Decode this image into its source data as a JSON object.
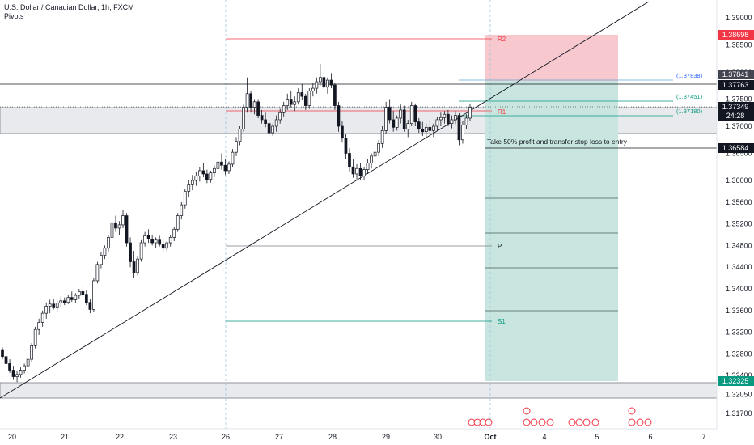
{
  "header": {
    "title": "U.S. Dollar / Canadian Dollar, 1h, FXCM",
    "indicator": "Pivots"
  },
  "chart_data": {
    "type": "candlestick",
    "symbol": "USDCAD",
    "timeframe": "1h",
    "y_ticks": [
      "1.39000",
      "1.38500",
      "1.38000",
      "1.37500",
      "1.37000",
      "1.36500",
      "1.36000",
      "1.35600",
      "1.35200",
      "1.34800",
      "1.34400",
      "1.34000",
      "1.33600",
      "1.33200",
      "1.32800",
      "1.32400",
      "1.32050",
      "1.31700"
    ],
    "x_ticks": [
      "20",
      "21",
      "22",
      "23",
      "26",
      "27",
      "28",
      "29",
      "30",
      "Oct",
      "4",
      "5",
      "6",
      "7"
    ],
    "price_badges": [
      {
        "value": "1.38698",
        "bg": "#f23645",
        "fg": "#ffffff"
      },
      {
        "value": "1.37841",
        "bg": "#434651",
        "fg": "#ffffff"
      },
      {
        "value": "1.37763",
        "bg": "#131722",
        "fg": "#ffffff"
      },
      {
        "value": "1.37349",
        "bg": "#131722",
        "fg": "#ffffff"
      },
      {
        "value": "24:28",
        "bg": "#131722",
        "fg": "#ffffff"
      },
      {
        "value": "1.36584",
        "bg": "#131722",
        "fg": "#ffffff"
      },
      {
        "value": "1.32325",
        "bg": "#089981",
        "fg": "#ffffff"
      }
    ],
    "pivot_labels": {
      "r2": "R2",
      "r1": "R1",
      "p": "P",
      "s1": "S1"
    },
    "fib_labels": [
      "(1.37838)",
      "(1.37451)",
      "(1.37180)"
    ],
    "annotation": "Take 50% profit and transfer stop loss to entry",
    "candles": [
      [
        1.3288,
        1.3292,
        1.327,
        1.3275
      ],
      [
        1.3275,
        1.3282,
        1.3258,
        1.3262
      ],
      [
        1.3262,
        1.327,
        1.3245,
        1.325
      ],
      [
        1.325,
        1.3258,
        1.3232,
        1.3238
      ],
      [
        1.3238,
        1.3248,
        1.3228,
        1.3242
      ],
      [
        1.3242,
        1.3255,
        1.3236,
        1.325
      ],
      [
        1.325,
        1.3262,
        1.3244,
        1.3258
      ],
      [
        1.3258,
        1.3275,
        1.3252,
        1.327
      ],
      [
        1.327,
        1.33,
        1.3265,
        1.3295
      ],
      [
        1.3295,
        1.333,
        1.329,
        1.3325
      ],
      [
        1.3325,
        1.3345,
        1.3315,
        1.3338
      ],
      [
        1.3338,
        1.336,
        1.333,
        1.3355
      ],
      [
        1.3355,
        1.3375,
        1.3345,
        1.3368
      ],
      [
        1.3368,
        1.338,
        1.3355,
        1.3372
      ],
      [
        1.3372,
        1.3382,
        1.3362,
        1.3365
      ],
      [
        1.3365,
        1.3378,
        1.3358,
        1.3374
      ],
      [
        1.3374,
        1.3386,
        1.3366,
        1.3378
      ],
      [
        1.3378,
        1.3384,
        1.337,
        1.3375
      ],
      [
        1.3375,
        1.3388,
        1.3372,
        1.3384
      ],
      [
        1.3384,
        1.3395,
        1.3376,
        1.338
      ],
      [
        1.338,
        1.3392,
        1.3374,
        1.3388
      ],
      [
        1.3388,
        1.34,
        1.3382,
        1.3395
      ],
      [
        1.3395,
        1.3404,
        1.3385,
        1.339
      ],
      [
        1.339,
        1.3398,
        1.337,
        1.3375
      ],
      [
        1.3375,
        1.3382,
        1.3355,
        1.3362
      ],
      [
        1.3362,
        1.342,
        1.3358,
        1.3415
      ],
      [
        1.3415,
        1.345,
        1.341,
        1.3445
      ],
      [
        1.3445,
        1.3468,
        1.3438,
        1.3462
      ],
      [
        1.3462,
        1.348,
        1.3455,
        1.3475
      ],
      [
        1.3475,
        1.35,
        1.3468,
        1.3495
      ],
      [
        1.3495,
        1.353,
        1.3488,
        1.3522
      ],
      [
        1.3522,
        1.3535,
        1.3505,
        1.3512
      ],
      [
        1.3512,
        1.3525,
        1.35,
        1.3518
      ],
      [
        1.3518,
        1.3545,
        1.3512,
        1.3535
      ],
      [
        1.3535,
        1.354,
        1.3478,
        1.3485
      ],
      [
        1.3485,
        1.3495,
        1.344,
        1.345
      ],
      [
        1.345,
        1.347,
        1.342,
        1.343
      ],
      [
        1.343,
        1.346,
        1.3425,
        1.3455
      ],
      [
        1.3455,
        1.349,
        1.345,
        1.3485
      ],
      [
        1.3485,
        1.3505,
        1.3478,
        1.3498
      ],
      [
        1.3498,
        1.351,
        1.3485,
        1.3492
      ],
      [
        1.3492,
        1.35,
        1.348,
        1.3485
      ],
      [
        1.3485,
        1.3495,
        1.3476,
        1.349
      ],
      [
        1.349,
        1.3498,
        1.3478,
        1.3482
      ],
      [
        1.3482,
        1.349,
        1.3468,
        1.3475
      ],
      [
        1.3475,
        1.3488,
        1.347,
        1.3485
      ],
      [
        1.3485,
        1.35,
        1.3478,
        1.3495
      ],
      [
        1.3495,
        1.3515,
        1.3488,
        1.351
      ],
      [
        1.351,
        1.354,
        1.3505,
        1.3535
      ],
      [
        1.3535,
        1.356,
        1.3528,
        1.3555
      ],
      [
        1.3555,
        1.3585,
        1.3548,
        1.358
      ],
      [
        1.358,
        1.36,
        1.357,
        1.3592
      ],
      [
        1.3592,
        1.361,
        1.3582,
        1.36
      ],
      [
        1.36,
        1.3615,
        1.359,
        1.3608
      ],
      [
        1.3608,
        1.3625,
        1.3598,
        1.3618
      ],
      [
        1.3618,
        1.3632,
        1.3606,
        1.3612
      ],
      [
        1.3612,
        1.362,
        1.3595,
        1.3602
      ],
      [
        1.3602,
        1.3618,
        1.3596,
        1.3614
      ],
      [
        1.3614,
        1.3628,
        1.3606,
        1.3622
      ],
      [
        1.3622,
        1.364,
        1.3612,
        1.3634
      ],
      [
        1.3634,
        1.365,
        1.362,
        1.3628
      ],
      [
        1.3628,
        1.364,
        1.361,
        1.3618
      ],
      [
        1.3618,
        1.3635,
        1.3612,
        1.363
      ],
      [
        1.363,
        1.3658,
        1.3625,
        1.3652
      ],
      [
        1.3652,
        1.368,
        1.3645,
        1.3672
      ],
      [
        1.3672,
        1.37,
        1.3665,
        1.3695
      ],
      [
        1.3695,
        1.374,
        1.369,
        1.3735
      ],
      [
        1.3735,
        1.379,
        1.3725,
        1.376
      ],
      [
        1.376,
        1.3765,
        1.3725,
        1.3735
      ],
      [
        1.3735,
        1.375,
        1.3722,
        1.3745
      ],
      [
        1.3745,
        1.375,
        1.3715,
        1.372
      ],
      [
        1.372,
        1.373,
        1.3705,
        1.3712
      ],
      [
        1.3712,
        1.3725,
        1.3698,
        1.3705
      ],
      [
        1.3705,
        1.3712,
        1.368,
        1.3688
      ],
      [
        1.3688,
        1.3705,
        1.3682,
        1.37
      ],
      [
        1.37,
        1.372,
        1.369,
        1.3712
      ],
      [
        1.3712,
        1.3732,
        1.3705,
        1.3725
      ],
      [
        1.3725,
        1.3745,
        1.3718,
        1.3738
      ],
      [
        1.3738,
        1.376,
        1.373,
        1.375
      ],
      [
        1.375,
        1.3765,
        1.3735,
        1.374
      ],
      [
        1.374,
        1.3755,
        1.3728,
        1.3745
      ],
      [
        1.3745,
        1.377,
        1.374,
        1.3762
      ],
      [
        1.3762,
        1.3778,
        1.3748,
        1.3755
      ],
      [
        1.3755,
        1.376,
        1.373,
        1.3738
      ],
      [
        1.3738,
        1.377,
        1.3732,
        1.3765
      ],
      [
        1.3765,
        1.378,
        1.3755,
        1.377
      ],
      [
        1.377,
        1.379,
        1.376,
        1.3782
      ],
      [
        1.3782,
        1.3815,
        1.3775,
        1.379
      ],
      [
        1.379,
        1.38,
        1.3765,
        1.3772
      ],
      [
        1.3772,
        1.379,
        1.376,
        1.3785
      ],
      [
        1.3785,
        1.3798,
        1.377,
        1.3776
      ],
      [
        1.3776,
        1.378,
        1.373,
        1.3738
      ],
      [
        1.3738,
        1.3745,
        1.369,
        1.37
      ],
      [
        1.37,
        1.371,
        1.367,
        1.3678
      ],
      [
        1.3678,
        1.3685,
        1.364,
        1.365
      ],
      [
        1.365,
        1.366,
        1.3615,
        1.3625
      ],
      [
        1.3625,
        1.364,
        1.3605,
        1.3612
      ],
      [
        1.3612,
        1.363,
        1.3602,
        1.3622
      ],
      [
        1.3622,
        1.3632,
        1.36,
        1.3608
      ],
      [
        1.3608,
        1.3625,
        1.36,
        1.362
      ],
      [
        1.362,
        1.364,
        1.3612,
        1.3632
      ],
      [
        1.3632,
        1.365,
        1.3622,
        1.3645
      ],
      [
        1.3645,
        1.366,
        1.3635,
        1.3652
      ],
      [
        1.3652,
        1.3675,
        1.3645,
        1.3668
      ],
      [
        1.3668,
        1.37,
        1.366,
        1.3692
      ],
      [
        1.3692,
        1.3745,
        1.3685,
        1.3735
      ],
      [
        1.3735,
        1.375,
        1.3705,
        1.3712
      ],
      [
        1.3712,
        1.3728,
        1.369,
        1.3698
      ],
      [
        1.3698,
        1.372,
        1.3692,
        1.3715
      ],
      [
        1.3715,
        1.374,
        1.3705,
        1.373
      ],
      [
        1.373,
        1.3738,
        1.369,
        1.3695
      ],
      [
        1.3695,
        1.3712,
        1.368,
        1.3705
      ],
      [
        1.3705,
        1.3745,
        1.37,
        1.3738
      ],
      [
        1.3738,
        1.3742,
        1.37,
        1.3708
      ],
      [
        1.3708,
        1.3715,
        1.3688,
        1.3695
      ],
      [
        1.3695,
        1.3708,
        1.3682,
        1.369
      ],
      [
        1.369,
        1.3705,
        1.3678,
        1.3698
      ],
      [
        1.3698,
        1.3712,
        1.3685,
        1.3692
      ],
      [
        1.3692,
        1.3705,
        1.368,
        1.37
      ],
      [
        1.37,
        1.3718,
        1.3692,
        1.3712
      ],
      [
        1.3712,
        1.3725,
        1.37,
        1.3716
      ],
      [
        1.3716,
        1.3728,
        1.3705,
        1.3722
      ],
      [
        1.3722,
        1.373,
        1.37,
        1.3705
      ],
      [
        1.3705,
        1.372,
        1.3696,
        1.3712
      ],
      [
        1.3712,
        1.3728,
        1.3704,
        1.372
      ],
      [
        1.372,
        1.3724,
        1.3665,
        1.3675
      ],
      [
        1.3675,
        1.371,
        1.3668,
        1.3702
      ],
      [
        1.3702,
        1.3722,
        1.3695,
        1.3715
      ],
      [
        1.3715,
        1.3742,
        1.371,
        1.3735
      ]
    ]
  }
}
